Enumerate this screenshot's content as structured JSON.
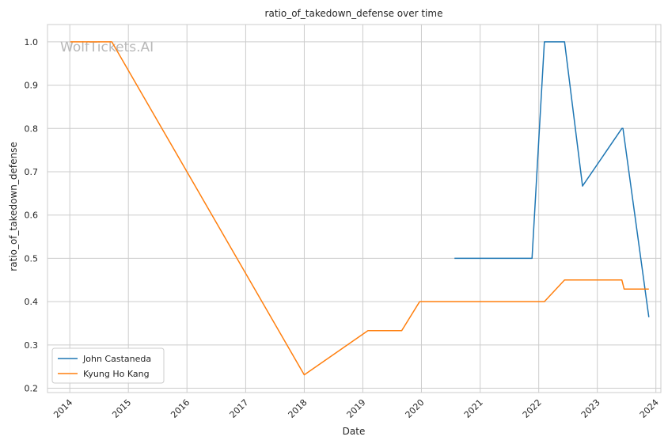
{
  "chart_data": {
    "type": "line",
    "title": "ratio_of_takedown_defense over time",
    "xlabel": "Date",
    "ylabel": "ratio_of_takedown_defense",
    "watermark": "WolfTickets.AI",
    "x_ticks": [
      "2014",
      "2015",
      "2016",
      "2017",
      "2018",
      "2019",
      "2020",
      "2021",
      "2022",
      "2023",
      "2024"
    ],
    "y_ticks": [
      0.2,
      0.3,
      0.4,
      0.5,
      0.6,
      0.7,
      0.8,
      0.9,
      1.0
    ],
    "xlim": [
      "2013-08-15",
      "2024-02-01"
    ],
    "ylim": [
      0.19,
      1.04
    ],
    "grid": true,
    "legend_position": "lower-left",
    "series": [
      {
        "name": "John Castaneda",
        "color": "#1f77b4",
        "points": [
          {
            "x": "2020-07-25",
            "y": 0.5
          },
          {
            "x": "2021-11-20",
            "y": 0.5
          },
          {
            "x": "2022-02-05",
            "y": 1.0
          },
          {
            "x": "2022-06-11",
            "y": 1.0
          },
          {
            "x": "2022-10-01",
            "y": 0.667
          },
          {
            "x": "2023-06-03",
            "y": 0.8
          },
          {
            "x": "2023-06-10",
            "y": 0.8
          },
          {
            "x": "2023-11-18",
            "y": 0.364
          }
        ]
      },
      {
        "name": "Kyung Ho Kang",
        "color": "#ff7f0e",
        "points": [
          {
            "x": "2014-01-04",
            "y": 1.0
          },
          {
            "x": "2014-09-20",
            "y": 1.0
          },
          {
            "x": "2016-01-01",
            "y": 0.7
          },
          {
            "x": "2018-01-01",
            "y": 0.231
          },
          {
            "x": "2019-02-02",
            "y": 0.333
          },
          {
            "x": "2019-08-31",
            "y": 0.333
          },
          {
            "x": "2019-12-21",
            "y": 0.4
          },
          {
            "x": "2022-02-05",
            "y": 0.4
          },
          {
            "x": "2022-06-11",
            "y": 0.45
          },
          {
            "x": "2023-06-03",
            "y": 0.45
          },
          {
            "x": "2023-06-17",
            "y": 0.429
          },
          {
            "x": "2023-11-18",
            "y": 0.429
          }
        ]
      }
    ]
  }
}
